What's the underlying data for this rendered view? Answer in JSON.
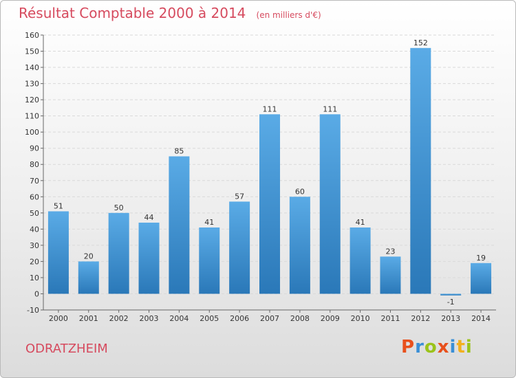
{
  "header": {
    "title": "Résultat Comptable 2000 à 2014",
    "unit_note": "(en milliers d'€)"
  },
  "footer": {
    "commune": "ODRATZHEIM",
    "logo_text": "Proxiti",
    "logo_colors": [
      "#e8501c",
      "#3a8fd6",
      "#9bc31a",
      "#e8501c",
      "#3a8fd6",
      "#f2b01e",
      "#9bc31a"
    ]
  },
  "colors": {
    "title": "#d64a5e",
    "bar_top": "#5aabe6",
    "bar_bottom": "#2a78b8",
    "grid": "#d9d9d9"
  },
  "chart_data": {
    "type": "bar",
    "title": "Résultat Comptable 2000 à 2014",
    "subtitle": "(en milliers d'€)",
    "xlabel": "",
    "ylabel": "",
    "categories": [
      "2000",
      "2001",
      "2002",
      "2003",
      "2004",
      "2005",
      "2006",
      "2007",
      "2008",
      "2009",
      "2010",
      "2011",
      "2012",
      "2013",
      "2014"
    ],
    "values": [
      51,
      20,
      50,
      44,
      85,
      41,
      57,
      111,
      60,
      111,
      41,
      23,
      152,
      -1,
      19
    ],
    "ylim": [
      -10,
      160
    ],
    "yticks": [
      -10,
      0,
      10,
      20,
      30,
      40,
      50,
      60,
      70,
      80,
      90,
      100,
      110,
      120,
      130,
      140,
      150,
      160
    ],
    "grid": true,
    "legend": "none"
  }
}
